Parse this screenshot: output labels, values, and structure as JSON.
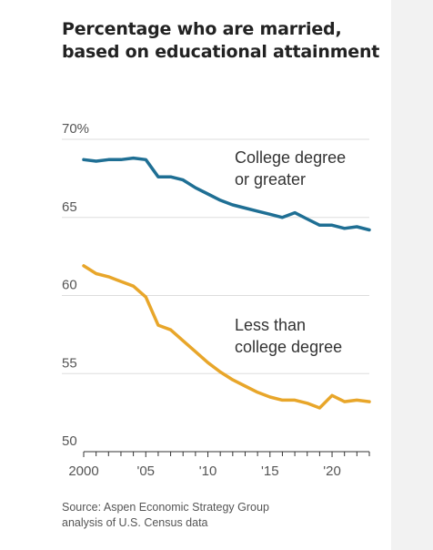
{
  "colors": {
    "college": "#1f6f94",
    "less_than_college": "#e8a62a",
    "grid": "#dddddd",
    "side_panel": "#f2f2f2"
  },
  "chart_data": {
    "type": "line",
    "title": "Percentage who are married, based on educational attainment",
    "xlabel": "",
    "ylabel": "",
    "xlim": [
      2000,
      2023
    ],
    "ylim": [
      50,
      70
    ],
    "y_ticks": [
      50,
      55,
      60,
      65,
      70
    ],
    "y_tick_labels": [
      "50",
      "55",
      "60",
      "65",
      "70%"
    ],
    "x_ticks": [
      2000,
      2005,
      2010,
      2015,
      2020
    ],
    "x_tick_labels": [
      "2000",
      "'05",
      "'10",
      "'15",
      "'20"
    ],
    "grid": true,
    "series": [
      {
        "name": "College degree or greater",
        "label_lines": [
          "College degree",
          "or greater"
        ],
        "x": [
          2000,
          2001,
          2002,
          2003,
          2004,
          2005,
          2006,
          2007,
          2008,
          2009,
          2010,
          2011,
          2012,
          2013,
          2014,
          2015,
          2016,
          2017,
          2018,
          2019,
          2020,
          2021,
          2022,
          2023
        ],
        "values": [
          68.7,
          68.6,
          68.7,
          68.7,
          68.8,
          68.7,
          67.6,
          67.6,
          67.4,
          66.9,
          66.5,
          66.1,
          65.8,
          65.6,
          65.4,
          65.2,
          65.0,
          65.3,
          64.9,
          64.5,
          64.5,
          64.3,
          64.4,
          64.2
        ]
      },
      {
        "name": "Less than college degree",
        "label_lines": [
          "Less than",
          "college degree"
        ],
        "x": [
          2000,
          2001,
          2002,
          2003,
          2004,
          2005,
          2006,
          2007,
          2008,
          2009,
          2010,
          2011,
          2012,
          2013,
          2014,
          2015,
          2016,
          2017,
          2018,
          2019,
          2020,
          2021,
          2022,
          2023
        ],
        "values": [
          61.9,
          61.4,
          61.2,
          60.9,
          60.6,
          59.9,
          58.1,
          57.8,
          57.1,
          56.4,
          55.7,
          55.1,
          54.6,
          54.2,
          53.8,
          53.5,
          53.3,
          53.3,
          53.1,
          52.8,
          53.6,
          53.2,
          53.3,
          53.2
        ]
      }
    ]
  },
  "source_lines": [
    "Source: Aspen Economic Strategy Group",
    "analysis of U.S. Census data"
  ]
}
